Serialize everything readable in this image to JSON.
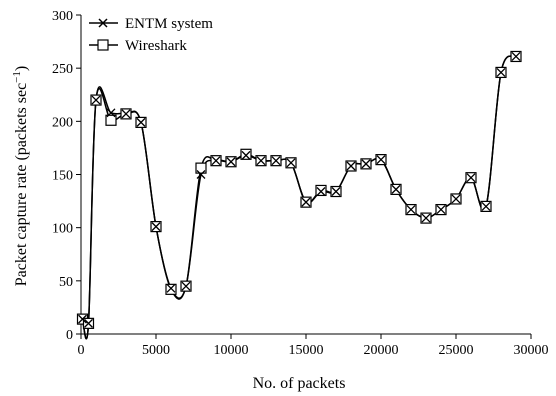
{
  "chart_data": {
    "type": "line",
    "title": "",
    "xlabel": "No. of packets",
    "ylabel": "Packet capture rate (packets sec",
    "ylabel_sup": "−1",
    "ylabel_close": ")",
    "xlim": [
      0,
      30000
    ],
    "ylim": [
      0,
      300
    ],
    "xticks": [
      0,
      5000,
      10000,
      15000,
      20000,
      25000,
      30000
    ],
    "yticks": [
      0,
      50,
      100,
      150,
      200,
      250,
      300
    ],
    "grid": false,
    "legend_position": "top-left",
    "series": [
      {
        "name": "ENTM system",
        "marker": "x",
        "color": "#000000",
        "x": [
          100,
          500,
          1000,
          2000,
          3000,
          4000,
          5000,
          6000,
          7000,
          8000,
          9000,
          10000,
          11000,
          12000,
          13000,
          14000,
          15000,
          16000,
          17000,
          18000,
          19000,
          20000,
          21000,
          22000,
          23000,
          24000,
          25000,
          26000,
          27000,
          28000,
          29000
        ],
        "y": [
          14,
          10,
          220,
          208,
          207,
          199,
          101,
          43,
          45,
          150,
          163,
          162,
          168,
          163,
          163,
          161,
          124,
          134,
          134,
          158,
          160,
          164,
          136,
          117,
          109,
          117,
          127,
          147,
          120,
          246,
          261
        ]
      },
      {
        "name": "Wireshark",
        "marker": "square",
        "color": "#000000",
        "x": [
          100,
          500,
          1000,
          2000,
          3000,
          4000,
          5000,
          6000,
          7000,
          8000,
          9000,
          10000,
          11000,
          12000,
          13000,
          14000,
          15000,
          16000,
          17000,
          18000,
          19000,
          20000,
          21000,
          22000,
          23000,
          24000,
          25000,
          26000,
          27000,
          28000,
          29000
        ],
        "y": [
          14,
          10,
          220,
          201,
          207,
          199,
          101,
          42,
          45,
          156,
          163,
          162,
          169,
          163,
          163,
          161,
          124,
          135,
          134,
          158,
          160,
          164,
          136,
          117,
          109,
          117,
          127,
          147,
          120,
          246,
          261
        ]
      }
    ]
  }
}
